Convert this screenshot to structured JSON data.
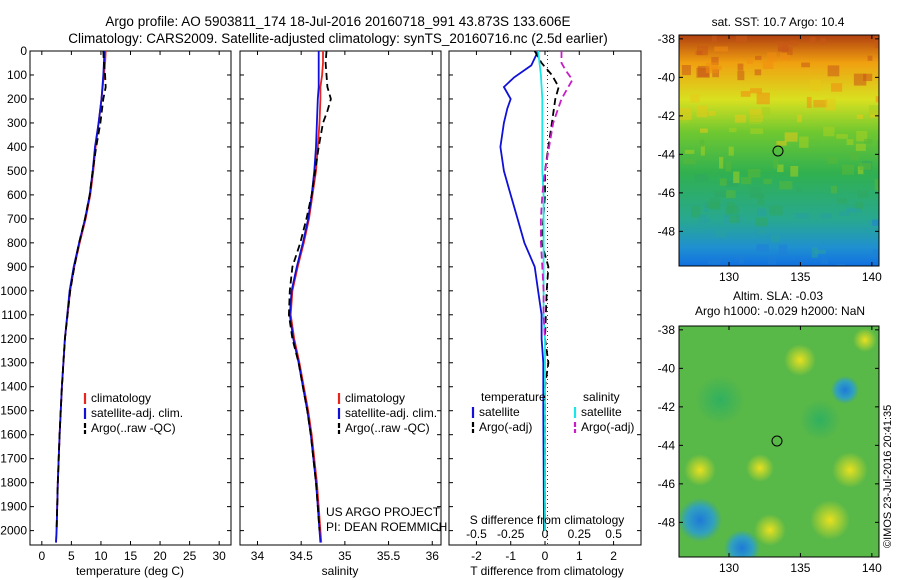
{
  "header": {
    "title_line1": "Argo profile: AO 5903811_174 18-Jul-2016 20160718_991 43.873S 133.606E",
    "title_line2": "Climatology: CARS2009. Satellite-adjusted climatology: synTS_20160716.nc (2.5d earlier)"
  },
  "colors": {
    "climatology": "#e8241c",
    "satellite": "#1010d8",
    "argo": "#000000",
    "sat_salinity": "#19e6e6",
    "argo_salinity_adj": "#c81ec8"
  },
  "depth_axis": {
    "ticks": [
      "0",
      "100",
      "200",
      "300",
      "400",
      "500",
      "600",
      "700",
      "800",
      "900",
      "1000",
      "1100",
      "1200",
      "1300",
      "1400",
      "1500",
      "1600",
      "1700",
      "1800",
      "1900",
      "2000"
    ],
    "ylim": [
      0,
      2060
    ]
  },
  "footer": {
    "project": "US ARGO PROJECT",
    "pi": "PI: DEAN ROEMMICH",
    "credit": "©IMOS 23-Jul-2016 20:41:35"
  },
  "maps": {
    "sst": {
      "title": "sat. SST: 10.7 Argo: 10.4",
      "lat_ticks": [
        "-38",
        "-40",
        "-42",
        "-44",
        "-46",
        "-48"
      ],
      "lon_ticks": [
        "130",
        "135",
        "140"
      ]
    },
    "sla": {
      "title_line1": "Altim. SLA: -0.03",
      "title_line2": "Argo h1000: -0.029 h2000: NaN",
      "lat_ticks": [
        "-38",
        "-40",
        "-42",
        "-44",
        "-46",
        "-48"
      ],
      "lon_ticks": [
        "130",
        "135",
        "140"
      ]
    }
  },
  "chart_data": [
    {
      "type": "line",
      "name": "temperature-profile",
      "xlabel": "temperature (deg C)",
      "ylabel": "",
      "xticks": [
        "0",
        "5",
        "10",
        "15",
        "20",
        "25",
        "30"
      ],
      "xlim": [
        -2,
        32
      ],
      "ylim": [
        2060,
        0
      ],
      "legend": [
        "climatology",
        "satellite-adj. clim.",
        "Argo(..raw -QC)"
      ],
      "legend_location": "lower-center",
      "series": [
        {
          "name": "climatology",
          "color": "#e8241c",
          "dash": "",
          "depth": [
            0,
            50,
            100,
            200,
            300,
            400,
            500,
            600,
            700,
            800,
            900,
            1000,
            1200,
            1400,
            1600,
            1800,
            2000,
            2050
          ],
          "values": [
            10.8,
            10.7,
            10.5,
            10.1,
            9.6,
            9.1,
            8.7,
            8.2,
            7.4,
            6.4,
            5.5,
            4.8,
            3.9,
            3.4,
            3.0,
            2.7,
            2.5,
            2.4
          ]
        },
        {
          "name": "satellite-adj. clim.",
          "color": "#1010d8",
          "dash": "",
          "depth": [
            0,
            50,
            100,
            200,
            300,
            400,
            500,
            600,
            700,
            800,
            900,
            1000,
            1200,
            1400,
            1600,
            1800,
            2000,
            2050
          ],
          "values": [
            10.6,
            10.5,
            10.4,
            10.1,
            9.6,
            9.0,
            8.6,
            8.1,
            7.3,
            6.3,
            5.4,
            4.7,
            3.9,
            3.4,
            3.0,
            2.7,
            2.5,
            2.4
          ]
        },
        {
          "name": "Argo(..raw -QC)",
          "color": "#000000",
          "dash": "7,4",
          "depth": [
            0,
            50,
            100,
            150,
            200,
            300,
            400,
            500,
            600,
            700,
            800,
            900,
            1000,
            1200,
            1400,
            1600,
            1800,
            2000
          ],
          "values": [
            10.4,
            10.5,
            10.7,
            10.8,
            10.4,
            9.9,
            9.2,
            8.6,
            8.1,
            7.3,
            6.3,
            5.5,
            4.8,
            3.9,
            3.4,
            3.0,
            2.7,
            2.5
          ]
        }
      ]
    },
    {
      "type": "line",
      "name": "salinity-profile",
      "xlabel": "salinity",
      "ylabel": "",
      "xticks": [
        "34",
        "34.5",
        "35",
        "35.5",
        "36"
      ],
      "xlim": [
        33.8,
        36.1
      ],
      "ylim": [
        2060,
        0
      ],
      "legend": [
        "climatology",
        "satellite-adj. clim.",
        "Argo(..raw -QC)"
      ],
      "legend_location": "lower-center",
      "series": [
        {
          "name": "climatology",
          "color": "#e8241c",
          "dash": "",
          "depth": [
            0,
            50,
            100,
            150,
            200,
            300,
            400,
            500,
            600,
            700,
            800,
            900,
            1000,
            1100,
            1200,
            1300,
            1400,
            1500,
            1600,
            1700,
            1800,
            1900,
            2000,
            2050
          ],
          "values": [
            34.75,
            34.75,
            34.74,
            34.72,
            34.72,
            34.71,
            34.69,
            34.67,
            34.63,
            34.59,
            34.53,
            34.46,
            34.4,
            34.38,
            34.42,
            34.48,
            34.53,
            34.58,
            34.62,
            34.65,
            34.68,
            34.7,
            34.72,
            34.73
          ]
        },
        {
          "name": "satellite-adj. clim.",
          "color": "#1010d8",
          "dash": "",
          "depth": [
            0,
            50,
            100,
            150,
            200,
            300,
            400,
            500,
            600,
            700,
            800,
            900,
            1000,
            1100,
            1200,
            1300,
            1400,
            1500,
            1600,
            1700,
            1800,
            1900,
            2000,
            2050
          ],
          "values": [
            34.7,
            34.7,
            34.7,
            34.7,
            34.69,
            34.68,
            34.67,
            34.65,
            34.62,
            34.58,
            34.52,
            34.45,
            34.39,
            34.37,
            34.41,
            34.47,
            34.52,
            34.57,
            34.61,
            34.64,
            34.67,
            34.69,
            34.71,
            34.72
          ]
        },
        {
          "name": "Argo(..raw -QC)",
          "color": "#000000",
          "dash": "7,4",
          "depth": [
            0,
            50,
            100,
            150,
            200,
            250,
            300,
            400,
            500,
            600,
            700,
            800,
            900,
            1000,
            1100,
            1200,
            1300,
            1400,
            1500,
            1600,
            1700,
            1800,
            1900,
            2000
          ],
          "values": [
            34.79,
            34.78,
            34.79,
            34.8,
            34.84,
            34.8,
            34.75,
            34.7,
            34.66,
            34.62,
            34.56,
            34.49,
            34.4,
            34.37,
            34.36,
            34.4,
            34.47,
            34.52,
            34.57,
            34.61,
            34.64,
            34.67,
            34.69,
            34.71
          ]
        }
      ]
    },
    {
      "type": "line",
      "name": "difference-profile",
      "xlabel": "T difference from climatology",
      "x2label": "S difference from climatology",
      "xticks": [
        "-2",
        "-1",
        "0",
        "1",
        "2"
      ],
      "x2ticks": [
        "-0.5",
        "-0.25",
        "0",
        "0.25",
        "0.5"
      ],
      "xlim": [
        -2.8,
        2.8
      ],
      "x2lim": [
        -0.7,
        0.7
      ],
      "ylim": [
        2060,
        0
      ],
      "legend_groups": [
        {
          "heading": "temperature",
          "items": [
            "satellite",
            "Argo(-adj)"
          ]
        },
        {
          "heading": "salinity",
          "items": [
            "satellite",
            "Argo(-adj)"
          ]
        }
      ],
      "series": [
        {
          "name": "satellite",
          "axis": "T",
          "color": "#1010d8",
          "dash": "",
          "depth": [
            0,
            60,
            110,
            150,
            200,
            240,
            300,
            400,
            500,
            600,
            700,
            800,
            900,
            1000,
            1100,
            1200,
            1300,
            1400,
            1500,
            1700,
            2000
          ],
          "values": [
            -0.2,
            -0.4,
            -0.9,
            -1.2,
            -1.0,
            -1.1,
            -1.2,
            -1.3,
            -1.2,
            -1.0,
            -0.8,
            -0.6,
            -0.3,
            -0.2,
            -0.1,
            -0.1,
            -0.05,
            -0.05,
            -0.05,
            -0.04,
            -0.03
          ]
        },
        {
          "name": "Argo(-adj)",
          "axis": "T",
          "color": "#000000",
          "dash": "7,4",
          "depth": [
            0,
            50,
            100,
            150,
            200,
            300,
            400,
            500,
            600,
            700,
            800,
            900,
            1000,
            1200,
            1300,
            1400,
            1600,
            2000
          ],
          "values": [
            -0.3,
            -0.1,
            0.2,
            0.4,
            0.3,
            0.2,
            0.1,
            0.0,
            0.0,
            -0.05,
            -0.1,
            0.1,
            0.05,
            0.0,
            0.1,
            0.0,
            0.0,
            0.0
          ]
        },
        {
          "name": "satellite",
          "axis": "S",
          "color": "#19e6e6",
          "dash": "",
          "depth": [
            0,
            50,
            100,
            200,
            300,
            400,
            500,
            600,
            700,
            800,
            900,
            1000,
            1100,
            1200,
            1400,
            1600,
            2000
          ],
          "values": [
            -0.05,
            -0.04,
            -0.03,
            -0.02,
            -0.02,
            -0.02,
            -0.02,
            -0.01,
            -0.01,
            -0.01,
            -0.01,
            -0.01,
            -0.01,
            0.0,
            0.0,
            0.0,
            0.0
          ]
        },
        {
          "name": "Argo(-adj)",
          "axis": "S",
          "color": "#c81ec8",
          "dash": "7,4",
          "depth": [
            0,
            50,
            80,
            120,
            150,
            200,
            300,
            400,
            500,
            600,
            700,
            800,
            900,
            1000,
            1100,
            1200
          ],
          "values": [
            0.12,
            0.12,
            0.15,
            0.2,
            0.17,
            0.12,
            0.06,
            0.03,
            0.0,
            -0.02,
            -0.03,
            -0.03,
            -0.02,
            -0.01,
            -0.01,
            0.0
          ]
        }
      ]
    }
  ]
}
